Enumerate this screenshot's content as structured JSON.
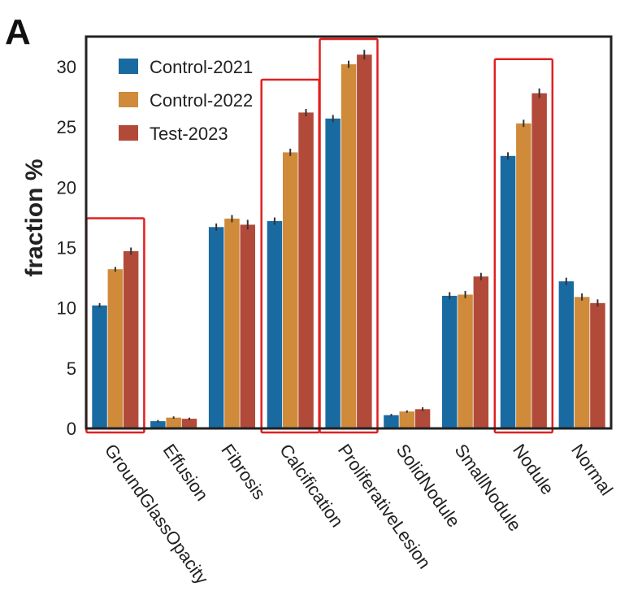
{
  "panel_label": "A",
  "chart_data": {
    "type": "bar",
    "ylabel": "fraction %",
    "xlabel": "",
    "ylim": [
      0,
      32.5
    ],
    "yticks": [
      0,
      5,
      10,
      15,
      20,
      25,
      30
    ],
    "grid": false,
    "legend_placement": "top-left",
    "categories": [
      "GroundGlassOpacity",
      "Effusion",
      "Fibrosis",
      "Calcification",
      "ProliferativeLesion",
      "SolidNodule",
      "SmallNodule",
      "Nodule",
      "Normal"
    ],
    "series": [
      {
        "name": "Control-2021",
        "color": "#1a6aa2",
        "values": [
          10.2,
          0.6,
          16.7,
          17.2,
          25.7,
          1.1,
          11.0,
          22.6,
          12.2
        ],
        "errors": [
          0.2,
          0.1,
          0.3,
          0.3,
          0.3,
          0.1,
          0.3,
          0.3,
          0.3
        ]
      },
      {
        "name": "Control-2022",
        "color": "#cf8a3a",
        "values": [
          13.2,
          0.9,
          17.4,
          22.9,
          30.2,
          1.4,
          11.1,
          25.3,
          10.9
        ],
        "errors": [
          0.2,
          0.1,
          0.3,
          0.3,
          0.3,
          0.1,
          0.3,
          0.3,
          0.3
        ]
      },
      {
        "name": "Test-2023",
        "color": "#b24a3a",
        "values": [
          14.7,
          0.8,
          16.9,
          26.2,
          31.0,
          1.6,
          12.6,
          27.8,
          10.4
        ],
        "errors": [
          0.3,
          0.1,
          0.4,
          0.3,
          0.4,
          0.15,
          0.3,
          0.4,
          0.3
        ]
      }
    ],
    "highlighted_categories": [
      "GroundGlassOpacity",
      "Calcification",
      "ProliferativeLesion",
      "Nodule"
    ],
    "highlight_color": "#e02020"
  }
}
